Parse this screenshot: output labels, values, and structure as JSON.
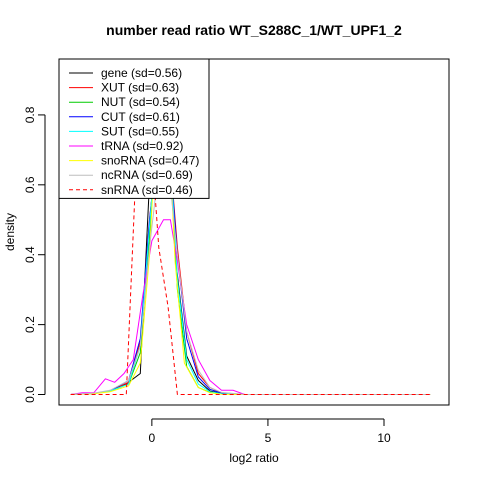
{
  "chart_data": {
    "type": "line",
    "title": "number read ratio WT_S288C_1/WT_UPF1_2",
    "xlabel": "log2 ratio",
    "ylabel": "density",
    "xlim": [
      -4.0,
      12.8
    ],
    "ylim": [
      -0.03,
      0.96
    ],
    "xticks": [
      0,
      5,
      10
    ],
    "yticks": [
      0.0,
      0.2,
      0.4,
      0.6,
      0.8
    ],
    "legend_position": "top-left",
    "series": [
      {
        "name": "gene (sd=0.56)",
        "color": "#000000",
        "dash": "",
        "x": [
          -3.5,
          -2.5,
          -1.8,
          -1.1,
          -0.5,
          0.0,
          0.3,
          0.6,
          1.0,
          1.5,
          2.0,
          2.5,
          3.0,
          4.0,
          12.0
        ],
        "y": [
          0.0,
          0.003,
          0.01,
          0.03,
          0.06,
          0.75,
          0.95,
          0.95,
          0.4,
          0.11,
          0.04,
          0.01,
          0.003,
          0.0,
          0.0
        ]
      },
      {
        "name": "XUT (sd=0.63)",
        "color": "#ff0000",
        "dash": "",
        "x": [
          -3.5,
          -2.5,
          -1.8,
          -1.0,
          -0.5,
          -0.1,
          0.3,
          0.7,
          1.1,
          1.5,
          2.0,
          2.5,
          3.0,
          4.0,
          12.0
        ],
        "y": [
          0.0,
          0.003,
          0.01,
          0.035,
          0.15,
          0.5,
          0.75,
          0.75,
          0.42,
          0.18,
          0.06,
          0.02,
          0.005,
          0.0,
          0.0
        ]
      },
      {
        "name": "NUT (sd=0.54)",
        "color": "#00cc00",
        "dash": "",
        "x": [
          -3.5,
          -2.5,
          -1.8,
          -1.0,
          -0.5,
          -0.1,
          0.3,
          0.7,
          1.1,
          1.5,
          2.0,
          2.5,
          3.0,
          4.0,
          12.0
        ],
        "y": [
          0.0,
          0.003,
          0.01,
          0.03,
          0.12,
          0.45,
          0.85,
          0.82,
          0.3,
          0.08,
          0.02,
          0.006,
          0.002,
          0.0,
          0.0
        ]
      },
      {
        "name": "CUT (sd=0.61)",
        "color": "#0000ff",
        "dash": "",
        "x": [
          -3.5,
          -2.5,
          -1.8,
          -1.0,
          -0.5,
          -0.1,
          0.3,
          0.7,
          1.1,
          1.5,
          2.0,
          2.5,
          3.0,
          4.0,
          12.0
        ],
        "y": [
          0.0,
          0.003,
          0.01,
          0.04,
          0.16,
          0.5,
          0.75,
          0.75,
          0.4,
          0.16,
          0.05,
          0.015,
          0.004,
          0.0,
          0.0
        ]
      },
      {
        "name": "SUT (sd=0.55)",
        "color": "#00ffff",
        "dash": "",
        "x": [
          -3.5,
          -2.5,
          -1.8,
          -1.0,
          -0.5,
          -0.1,
          0.3,
          0.7,
          1.1,
          1.5,
          2.0,
          2.5,
          3.0,
          4.0,
          12.0
        ],
        "y": [
          0.0,
          0.003,
          0.01,
          0.03,
          0.14,
          0.48,
          0.82,
          0.8,
          0.33,
          0.1,
          0.03,
          0.008,
          0.002,
          0.0,
          0.0
        ]
      },
      {
        "name": "tRNA (sd=0.92)",
        "color": "#ff00ff",
        "dash": "",
        "x": [
          -3.5,
          -3.0,
          -2.5,
          -2.0,
          -1.6,
          -1.2,
          -0.8,
          -0.4,
          0.0,
          0.5,
          0.8,
          1.1,
          1.5,
          2.0,
          2.5,
          3.0,
          3.5,
          4.0,
          12.0
        ],
        "y": [
          0.0,
          0.005,
          0.005,
          0.045,
          0.035,
          0.06,
          0.1,
          0.28,
          0.44,
          0.5,
          0.5,
          0.38,
          0.2,
          0.1,
          0.04,
          0.012,
          0.012,
          0.0,
          0.0
        ]
      },
      {
        "name": "snoRNA (sd=0.47)",
        "color": "#ffff00",
        "dash": "",
        "x": [
          -3.5,
          -2.5,
          -1.8,
          -1.0,
          -0.5,
          -0.1,
          0.3,
          0.6,
          1.0,
          1.4,
          2.0,
          2.5,
          3.0,
          4.0,
          12.0
        ],
        "y": [
          0.0,
          0.002,
          0.008,
          0.025,
          0.09,
          0.4,
          0.92,
          0.95,
          0.38,
          0.09,
          0.02,
          0.005,
          0.001,
          0.0,
          0.0
        ]
      },
      {
        "name": "ncRNA (sd=0.69)",
        "color": "#bebebe",
        "dash": "",
        "x": [
          -3.5,
          -2.5,
          -1.8,
          -1.0,
          -0.5,
          -0.1,
          0.3,
          0.7,
          1.1,
          1.5,
          2.0,
          2.5,
          3.0,
          4.0,
          12.0
        ],
        "y": [
          0.0,
          0.004,
          0.012,
          0.04,
          0.14,
          0.42,
          0.65,
          0.66,
          0.4,
          0.18,
          0.07,
          0.02,
          0.006,
          0.0,
          0.0
        ]
      },
      {
        "name": "snRNA (sd=0.46)",
        "color": "#ff0000",
        "dash": "4,3",
        "x": [
          -3.5,
          -1.1,
          -0.7,
          -0.3,
          0.0,
          0.3,
          0.7,
          1.1,
          12.0
        ],
        "y": [
          0.0,
          0.0,
          0.62,
          0.62,
          0.7,
          0.42,
          0.25,
          0.0,
          0.0
        ]
      }
    ]
  }
}
